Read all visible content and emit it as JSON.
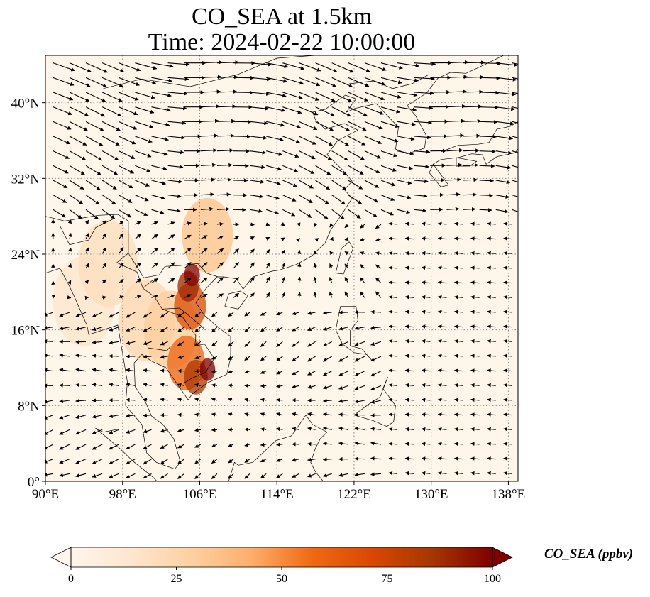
{
  "title": {
    "line1": "CO_SEA at 1.5km",
    "line2": "Time: 2024-02-22 10:00:00"
  },
  "map": {
    "lon_range": [
      90,
      139
    ],
    "lat_range": [
      0,
      45
    ],
    "lon_ticks": [
      {
        "value": 90,
        "label": "90°E"
      },
      {
        "value": 98,
        "label": "98°E"
      },
      {
        "value": 106,
        "label": "106°E"
      },
      {
        "value": 114,
        "label": "114°E"
      },
      {
        "value": 122,
        "label": "122°E"
      },
      {
        "value": 130,
        "label": "130°E"
      },
      {
        "value": 138,
        "label": "138°E"
      }
    ],
    "lat_ticks": [
      {
        "value": 0,
        "label": "0°"
      },
      {
        "value": 8,
        "label": "8°N"
      },
      {
        "value": 16,
        "label": "16°N"
      },
      {
        "value": 24,
        "label": "24°N"
      },
      {
        "value": 32,
        "label": "32°N"
      },
      {
        "value": 40,
        "label": "40°N"
      }
    ],
    "gridlines": "dotted",
    "background_color": "#fff5e8",
    "plume_hotspots": [
      {
        "lon": 105.2,
        "lat": 21.8,
        "value": 100
      },
      {
        "lon": 104.8,
        "lat": 20.6,
        "value": 90
      },
      {
        "lon": 105.0,
        "lat": 18.5,
        "value": 70
      },
      {
        "lon": 106.8,
        "lat": 11.8,
        "value": 100
      },
      {
        "lon": 105.6,
        "lat": 11.0,
        "value": 85
      },
      {
        "lon": 104.6,
        "lat": 12.5,
        "value": 60
      },
      {
        "lon": 106.8,
        "lat": 26.0,
        "value": 35
      },
      {
        "lon": 103.0,
        "lat": 16.0,
        "value": 30
      },
      {
        "lon": 100.5,
        "lat": 17.0,
        "value": 25
      },
      {
        "lon": 96.5,
        "lat": 23.0,
        "value": 20
      },
      {
        "lon": 94.0,
        "lat": 19.0,
        "value": 15
      }
    ]
  },
  "colorbar": {
    "label": "CO_SEA (ppbv)",
    "min": 0,
    "max": 100,
    "ticks": [
      {
        "value": 0,
        "label": "0"
      },
      {
        "value": 25,
        "label": "25"
      },
      {
        "value": 50,
        "label": "50"
      },
      {
        "value": 75,
        "label": "75"
      },
      {
        "value": 100,
        "label": "100"
      }
    ],
    "extend": "both",
    "colormap": [
      "#fff5eb",
      "#fee6ce",
      "#fdd0a2",
      "#fdae6b",
      "#f16913",
      "#d94801",
      "#a63603",
      "#7f0000"
    ]
  }
}
